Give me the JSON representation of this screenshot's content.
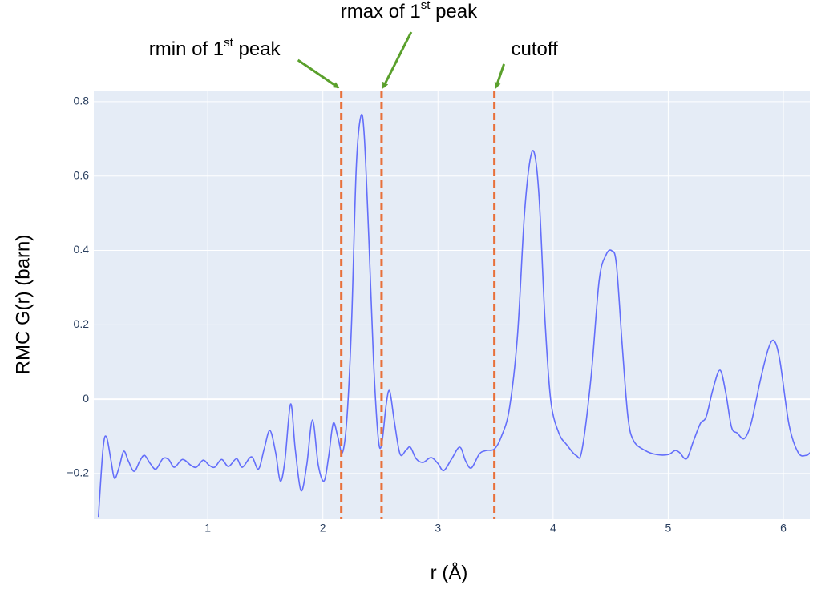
{
  "chart_data": {
    "type": "line",
    "x_label": "r (Å)",
    "y_label": "RMC G(r) (barn)",
    "xlim": [
      0.01,
      6.23
    ],
    "ylim": [
      -0.323,
      0.83
    ],
    "xticks": [
      1,
      2,
      3,
      4,
      5,
      6
    ],
    "yticks": [
      {
        "value": -0.2,
        "label": "−0.2"
      },
      0,
      0.2,
      0.4,
      0.6,
      0.8
    ],
    "grid": true,
    "series": [
      {
        "color": "#636efa",
        "x": [
          0.05,
          0.09,
          0.12,
          0.16,
          0.19,
          0.23,
          0.27,
          0.31,
          0.36,
          0.41,
          0.45,
          0.5,
          0.55,
          0.61,
          0.66,
          0.71,
          0.78,
          0.85,
          0.9,
          0.96,
          1.01,
          1.06,
          1.12,
          1.18,
          1.25,
          1.3,
          1.38,
          1.44,
          1.49,
          1.54,
          1.59,
          1.63,
          1.67,
          1.72,
          1.76,
          1.81,
          1.86,
          1.91,
          1.96,
          2.01,
          2.05,
          2.09,
          2.13,
          2.17,
          2.21,
          2.25,
          2.29,
          2.33,
          2.36,
          2.4,
          2.44,
          2.48,
          2.51,
          2.55,
          2.58,
          2.62,
          2.67,
          2.72,
          2.76,
          2.81,
          2.87,
          2.94,
          3.0,
          3.05,
          3.12,
          3.19,
          3.24,
          3.29,
          3.36,
          3.42,
          3.49,
          3.55,
          3.62,
          3.69,
          3.75,
          3.8,
          3.84,
          3.88,
          3.93,
          3.98,
          4.05,
          4.12,
          4.2,
          4.25,
          4.33,
          4.4,
          4.46,
          4.51,
          4.55,
          4.6,
          4.65,
          4.7,
          4.8,
          4.9,
          5.0,
          5.06,
          5.1,
          5.16,
          5.22,
          5.28,
          5.33,
          5.39,
          5.45,
          5.5,
          5.55,
          5.6,
          5.66,
          5.72,
          5.8,
          5.87,
          5.92,
          5.97,
          6.05,
          6.13,
          6.2,
          6.23
        ],
        "values": [
          -0.317,
          -0.134,
          -0.101,
          -0.166,
          -0.213,
          -0.183,
          -0.14,
          -0.166,
          -0.194,
          -0.166,
          -0.151,
          -0.173,
          -0.188,
          -0.16,
          -0.162,
          -0.183,
          -0.162,
          -0.177,
          -0.183,
          -0.164,
          -0.177,
          -0.183,
          -0.162,
          -0.181,
          -0.16,
          -0.183,
          -0.155,
          -0.188,
          -0.134,
          -0.084,
          -0.144,
          -0.22,
          -0.166,
          -0.013,
          -0.134,
          -0.246,
          -0.177,
          -0.056,
          -0.177,
          -0.22,
          -0.155,
          -0.065,
          -0.101,
          -0.144,
          -0.047,
          0.211,
          0.621,
          0.761,
          0.707,
          0.427,
          0.104,
          -0.101,
          -0.123,
          -0.015,
          0.022,
          -0.058,
          -0.147,
          -0.138,
          -0.129,
          -0.16,
          -0.17,
          -0.157,
          -0.173,
          -0.192,
          -0.16,
          -0.129,
          -0.166,
          -0.185,
          -0.147,
          -0.138,
          -0.134,
          -0.101,
          -0.026,
          0.168,
          0.492,
          0.643,
          0.658,
          0.535,
          0.211,
          -0.004,
          -0.091,
          -0.123,
          -0.151,
          -0.138,
          0.06,
          0.319,
          0.388,
          0.399,
          0.362,
          0.147,
          -0.047,
          -0.112,
          -0.138,
          -0.149,
          -0.149,
          -0.138,
          -0.144,
          -0.16,
          -0.112,
          -0.065,
          -0.047,
          0.028,
          0.078,
          0.017,
          -0.075,
          -0.091,
          -0.106,
          -0.065,
          0.05,
          0.136,
          0.157,
          0.104,
          -0.069,
          -0.144,
          -0.151,
          -0.144
        ]
      }
    ],
    "vlines": [
      {
        "x": 2.16,
        "color": "#e8703a",
        "annotation": [
          "rmin of 1",
          "st",
          " peak"
        ]
      },
      {
        "x": 2.51,
        "color": "#e8703a",
        "annotation": [
          "rmax of 1",
          "st",
          " peak"
        ]
      },
      {
        "x": 3.49,
        "color": "#e8703a",
        "annotation": [
          "cutoff"
        ]
      }
    ]
  }
}
